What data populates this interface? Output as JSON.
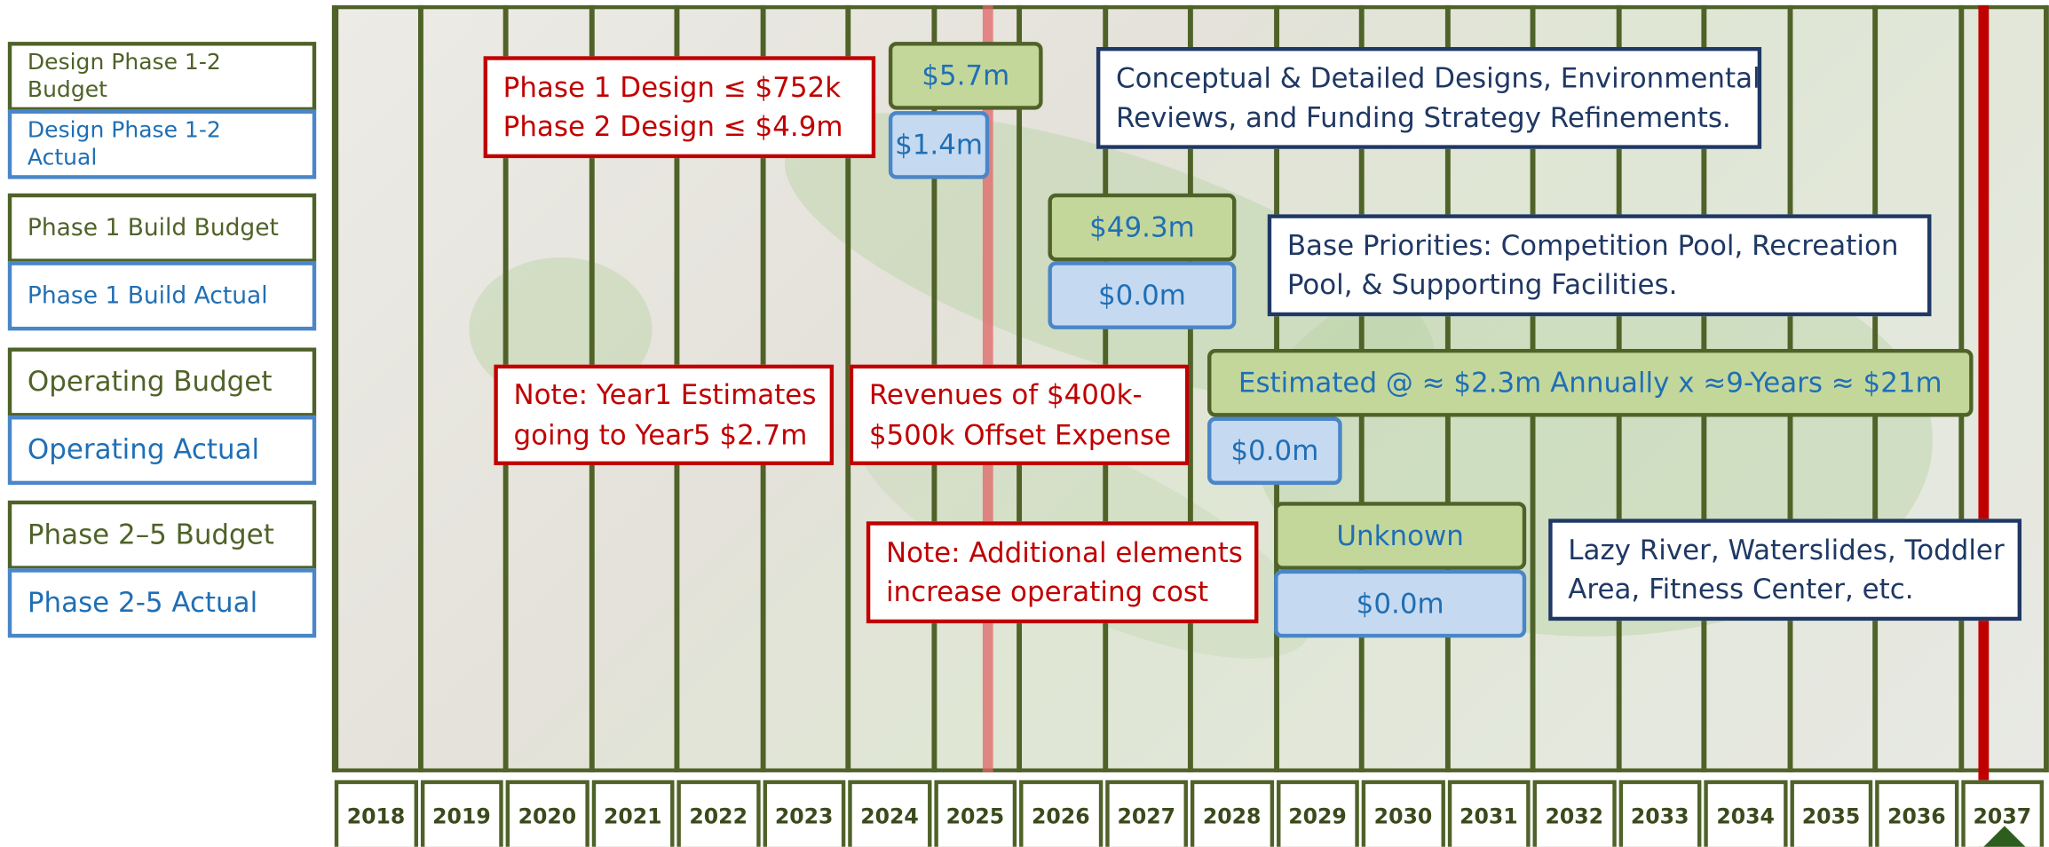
{
  "legend": [
    "Design Phase 1-2 Budget",
    "Design Phase 1-2 Actual",
    "Phase 1 Build Budget",
    "Phase 1 Build Actual",
    "Operating Budget",
    "Operating Actual",
    "Phase 2–5 Budget",
    "Phase 2-5 Actual"
  ],
  "years": [
    "2018",
    "2019",
    "2020",
    "2021",
    "2022",
    "2023",
    "2024",
    "2025",
    "2026",
    "2027",
    "2028",
    "2029",
    "2030",
    "2031",
    "2032",
    "2033",
    "2034",
    "2035",
    "2036",
    "2037"
  ],
  "boxes": [
    {
      "lines": [
        "Phase 1 Design ≤ $752k",
        "Phase 2 Design ≤ $4.9m"
      ]
    },
    {
      "lines": [
        "$5.7m"
      ]
    },
    {
      "lines": [
        "$1.4m"
      ]
    },
    {
      "lines": [
        "Conceptual & Detailed Designs, Environmental",
        "Reviews, and Funding Strategy Refinements."
      ]
    },
    {
      "lines": [
        "$49.3m"
      ]
    },
    {
      "lines": [
        "$0.0m"
      ]
    },
    {
      "lines": [
        "Base Priorities: Competition Pool, Recreation",
        "Pool, & Supporting Facilities."
      ]
    },
    {
      "lines": [
        "Note: Year1 Estimates",
        "going to Year5 $2.7m"
      ]
    },
    {
      "lines": [
        "Revenues of $400k-",
        "$500k Offset Expense"
      ]
    },
    {
      "lines": [
        "Estimated @ ≈ $2.3m Annually x ≈9-Years ≈ $21m"
      ]
    },
    {
      "lines": [
        "$0.0m"
      ]
    },
    {
      "lines": [
        "Unknown"
      ]
    },
    {
      "lines": [
        "$0.0m"
      ]
    },
    {
      "lines": [
        "Note: Additional elements",
        "increase operating cost"
      ]
    },
    {
      "lines": [
        "Lazy River, Waterslides, Toddler",
        "Area, Fitness Center, etc."
      ]
    }
  ]
}
